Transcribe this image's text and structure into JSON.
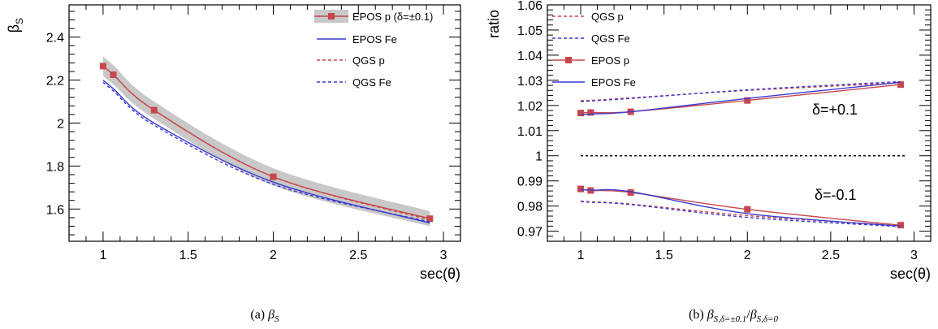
{
  "colors": {
    "red": "#c8464b",
    "blue": "#3a3ad0",
    "band": "#c8c8c8",
    "black": "#000000"
  },
  "chart_data": [
    {
      "type": "line",
      "panel": "a",
      "xlabel": "sec(θ)",
      "ylabel": "β_S",
      "ylabel_main": "β",
      "ylabel_sub": "S",
      "xlim": [
        0.8,
        3.1
      ],
      "ylim": [
        1.45,
        2.55
      ],
      "xticks": [
        1,
        1.5,
        2,
        2.5,
        3
      ],
      "xtick_labels": [
        "1",
        "1.5",
        "2",
        "2.5",
        "3"
      ],
      "yticks": [
        1.6,
        1.8,
        2.0,
        2.2,
        2.4
      ],
      "ytick_labels": [
        "1.6",
        "1.8",
        "2",
        "2.2",
        "2.4"
      ],
      "caption": "(a) β_S",
      "caption_prefix": "(a) ",
      "caption_main": "β",
      "caption_sub": "S",
      "legend": [
        "EPOS p (δ=±0.1)",
        "EPOS Fe",
        "QGS p",
        "QGS Fe"
      ],
      "legend_position": "top-right",
      "band": {
        "x": [
          1.0,
          1.06,
          1.3,
          2.0,
          2.92
        ],
        "upper": [
          2.31,
          2.27,
          2.1,
          1.79,
          1.59
        ],
        "lower": [
          2.22,
          2.18,
          2.02,
          1.71,
          1.52
        ]
      },
      "series": [
        {
          "name": "EPOS p (δ=±0.1)",
          "style": "solid-marker",
          "color": "red",
          "x": [
            1.0,
            1.06,
            1.3,
            2.0,
            2.92
          ],
          "y": [
            2.265,
            2.225,
            2.06,
            1.75,
            1.555
          ]
        },
        {
          "name": "EPOS Fe",
          "style": "solid",
          "color": "blue",
          "x": [
            1.0,
            1.06,
            1.3,
            2.0,
            2.92
          ],
          "y": [
            2.2,
            2.16,
            2.0,
            1.725,
            1.535
          ]
        },
        {
          "name": "QGS p",
          "style": "dashed",
          "color": "red",
          "x": [
            1.0,
            1.06,
            1.3,
            2.0,
            2.92
          ],
          "y": [
            2.265,
            2.225,
            2.06,
            1.75,
            1.55
          ]
        },
        {
          "name": "QGS Fe",
          "style": "dashed",
          "color": "blue",
          "x": [
            1.0,
            1.06,
            1.3,
            2.0,
            2.92
          ],
          "y": [
            2.19,
            2.15,
            1.99,
            1.715,
            1.54
          ]
        }
      ]
    },
    {
      "type": "line",
      "panel": "b",
      "xlabel": "sec(θ)",
      "ylabel": "ratio",
      "xlim": [
        0.8,
        3.1
      ],
      "ylim": [
        0.966,
        1.06
      ],
      "xticks": [
        1,
        1.5,
        2,
        2.5,
        3
      ],
      "xtick_labels": [
        "1",
        "1.5",
        "2",
        "2.5",
        "3"
      ],
      "yticks": [
        0.97,
        0.98,
        0.99,
        1.0,
        1.01,
        1.02,
        1.03,
        1.04,
        1.05,
        1.06
      ],
      "ytick_labels": [
        "0.97",
        "0.98",
        "0.99",
        "1",
        "1.01",
        "1.02",
        "1.03",
        "1.04",
        "1.05",
        "1.06"
      ],
      "caption": "(b) β_{S,δ=±0.1}/β_{S,δ=0}",
      "caption_prefix": "(b) ",
      "caption_main1": "β",
      "caption_sub1": "S,δ=±0.1",
      "caption_mid": "/",
      "caption_main2": "β",
      "caption_sub2": "S,δ=0",
      "legend": [
        "QGS p",
        "QGS Fe",
        "EPOS p",
        "EPOS Fe"
      ],
      "legend_position": "top-left",
      "annotations": [
        "δ=+0.1",
        "δ=-0.1"
      ],
      "reference_line": 1.0,
      "series": [
        {
          "name": "QGS p",
          "group": "plus",
          "style": "dashed",
          "color": "red",
          "x": [
            1.0,
            1.06,
            1.3,
            2.0,
            2.92
          ],
          "y": [
            1.022,
            1.022,
            1.023,
            1.026,
            1.029
          ]
        },
        {
          "name": "QGS Fe",
          "group": "plus",
          "style": "dashed",
          "color": "blue",
          "x": [
            1.0,
            1.06,
            1.3,
            2.0,
            2.92
          ],
          "y": [
            1.0215,
            1.0218,
            1.0228,
            1.0262,
            1.0295
          ]
        },
        {
          "name": "EPOS p",
          "group": "plus",
          "style": "solid-marker",
          "color": "red",
          "x": [
            1.0,
            1.06,
            1.3,
            2.0,
            2.92
          ],
          "y": [
            1.017,
            1.0172,
            1.0175,
            1.022,
            1.0283
          ]
        },
        {
          "name": "EPOS Fe",
          "group": "plus",
          "style": "solid",
          "color": "blue",
          "x": [
            1.0,
            1.06,
            1.3,
            2.0,
            2.92
          ],
          "y": [
            1.0163,
            1.0166,
            1.0175,
            1.0228,
            1.0292
          ]
        },
        {
          "name": "QGS p",
          "group": "minus",
          "style": "dashed",
          "color": "red",
          "x": [
            1.0,
            1.06,
            1.3,
            2.0,
            2.92
          ],
          "y": [
            0.982,
            0.9817,
            0.9808,
            0.9762,
            0.9722
          ]
        },
        {
          "name": "QGS Fe",
          "group": "minus",
          "style": "dashed",
          "color": "blue",
          "x": [
            1.0,
            1.06,
            1.3,
            2.0,
            2.92
          ],
          "y": [
            0.9818,
            0.9815,
            0.9806,
            0.9755,
            0.9718
          ]
        },
        {
          "name": "EPOS p",
          "group": "minus",
          "style": "solid-marker",
          "color": "red",
          "x": [
            1.0,
            1.06,
            1.3,
            2.0,
            2.92
          ],
          "y": [
            0.9868,
            0.9862,
            0.9854,
            0.9787,
            0.9724
          ]
        },
        {
          "name": "EPOS Fe",
          "group": "minus",
          "style": "solid",
          "color": "blue",
          "x": [
            1.0,
            1.06,
            1.3,
            2.0,
            2.92
          ],
          "y": [
            0.9865,
            0.9863,
            0.9857,
            0.977,
            0.972
          ]
        }
      ]
    }
  ]
}
